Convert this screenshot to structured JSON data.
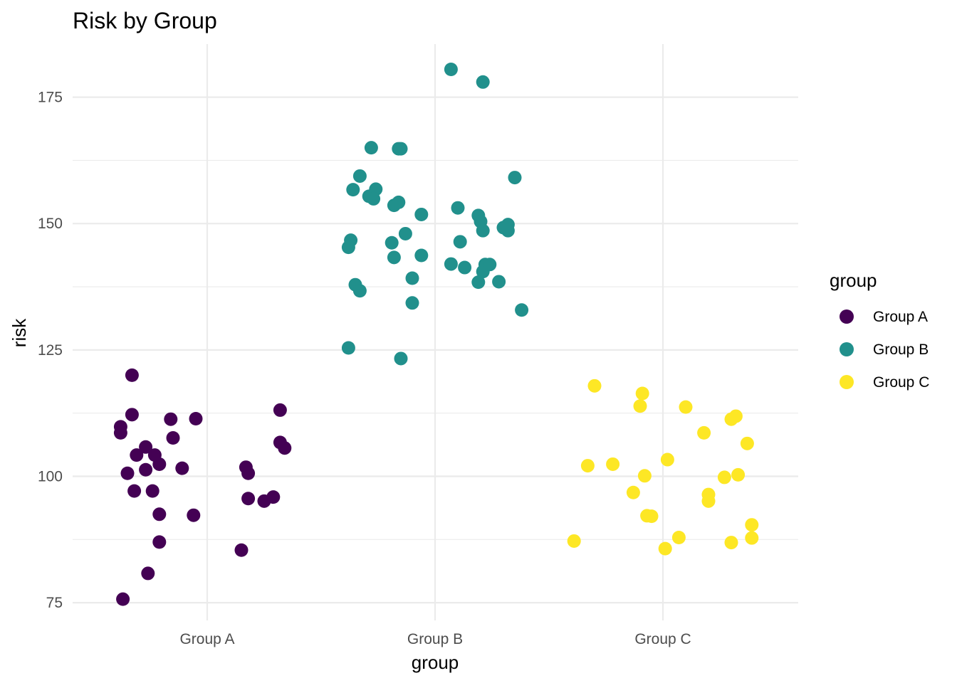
{
  "chart_data": {
    "type": "scatter",
    "title": "Risk by Group",
    "xlabel": "group",
    "ylabel": "risk",
    "categories": [
      "Group A",
      "Group B",
      "Group C"
    ],
    "ylim": [
      71.5,
      185.5
    ],
    "yticks": [
      75,
      100,
      125,
      150,
      175
    ],
    "grid": true,
    "legend": {
      "title": "group",
      "position": "right"
    },
    "series": [
      {
        "name": "Group A",
        "color": "#440154",
        "points": [
          [
            -0.38,
            109.8
          ],
          [
            -0.38,
            108.6
          ],
          [
            -0.33,
            112.2
          ],
          [
            -0.33,
            120.0
          ],
          [
            -0.35,
            100.6
          ],
          [
            -0.31,
            104.2
          ],
          [
            -0.32,
            97.1
          ],
          [
            -0.37,
            75.7
          ],
          [
            -0.26,
            80.8
          ],
          [
            -0.21,
            87.0
          ],
          [
            -0.27,
            105.8
          ],
          [
            -0.21,
            102.4
          ],
          [
            -0.21,
            92.5
          ],
          [
            -0.24,
            97.1
          ],
          [
            -0.27,
            101.3
          ],
          [
            -0.15,
            107.6
          ],
          [
            -0.16,
            111.3
          ],
          [
            -0.11,
            101.6
          ],
          [
            -0.05,
            111.4
          ],
          [
            -0.06,
            92.3
          ],
          [
            0.15,
            85.4
          ],
          [
            0.17,
            101.8
          ],
          [
            0.18,
            100.6
          ],
          [
            0.18,
            95.6
          ],
          [
            0.25,
            95.1
          ],
          [
            0.29,
            95.9
          ],
          [
            0.32,
            113.1
          ],
          [
            0.32,
            106.7
          ],
          [
            0.34,
            105.6
          ],
          [
            -0.23,
            104.2
          ]
        ]
      },
      {
        "name": "Group B",
        "color": "#21908C",
        "points": [
          [
            0.07,
            180.5
          ],
          [
            0.21,
            178.0
          ],
          [
            -0.28,
            165.0
          ],
          [
            -0.16,
            164.8
          ],
          [
            -0.15,
            164.8
          ],
          [
            -0.33,
            159.4
          ],
          [
            -0.36,
            156.7
          ],
          [
            -0.26,
            156.8
          ],
          [
            -0.29,
            155.4
          ],
          [
            -0.27,
            154.9
          ],
          [
            -0.18,
            153.6
          ],
          [
            -0.16,
            154.2
          ],
          [
            -0.06,
            151.8
          ],
          [
            0.35,
            159.1
          ],
          [
            0.1,
            153.1
          ],
          [
            0.19,
            151.6
          ],
          [
            0.2,
            150.4
          ],
          [
            0.21,
            148.6
          ],
          [
            0.3,
            149.2
          ],
          [
            0.32,
            149.8
          ],
          [
            0.32,
            148.6
          ],
          [
            -0.37,
            146.7
          ],
          [
            -0.38,
            145.3
          ],
          [
            -0.13,
            148.0
          ],
          [
            -0.19,
            146.2
          ],
          [
            0.11,
            146.4
          ],
          [
            -0.18,
            143.3
          ],
          [
            -0.06,
            143.7
          ],
          [
            0.07,
            142.0
          ],
          [
            0.13,
            141.3
          ],
          [
            0.21,
            140.5
          ],
          [
            0.22,
            141.9
          ],
          [
            0.24,
            141.9
          ],
          [
            -0.35,
            137.9
          ],
          [
            -0.33,
            136.7
          ],
          [
            -0.1,
            139.2
          ],
          [
            0.19,
            138.4
          ],
          [
            0.28,
            138.5
          ],
          [
            -0.1,
            134.3
          ],
          [
            0.38,
            132.9
          ],
          [
            -0.38,
            125.4
          ],
          [
            -0.15,
            123.3
          ]
        ]
      },
      {
        "name": "Group C",
        "color": "#FDE725",
        "points": [
          [
            -0.3,
            117.9
          ],
          [
            -0.09,
            116.4
          ],
          [
            -0.1,
            113.9
          ],
          [
            0.1,
            113.7
          ],
          [
            0.18,
            108.6
          ],
          [
            0.3,
            111.3
          ],
          [
            0.32,
            111.9
          ],
          [
            0.37,
            106.5
          ],
          [
            -0.33,
            102.1
          ],
          [
            -0.22,
            102.4
          ],
          [
            0.02,
            103.3
          ],
          [
            -0.08,
            100.1
          ],
          [
            -0.13,
            96.8
          ],
          [
            -0.07,
            92.2
          ],
          [
            -0.05,
            92.1
          ],
          [
            0.2,
            96.4
          ],
          [
            0.2,
            95.1
          ],
          [
            0.27,
            99.8
          ],
          [
            0.33,
            100.3
          ],
          [
            -0.39,
            87.2
          ],
          [
            0.01,
            85.7
          ],
          [
            0.07,
            87.9
          ],
          [
            0.3,
            86.9
          ],
          [
            0.39,
            90.4
          ],
          [
            0.39,
            87.8
          ]
        ]
      }
    ]
  }
}
